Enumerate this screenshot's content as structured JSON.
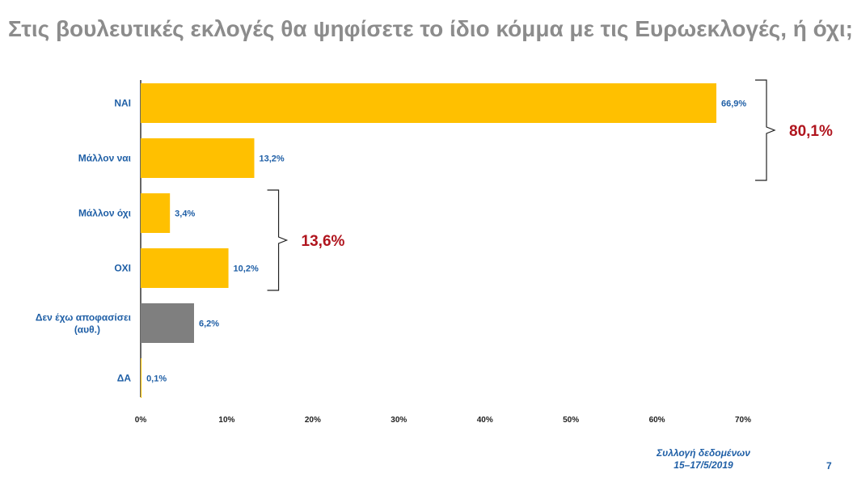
{
  "title": "Στις βουλευτικές εκλογές θα ψηφίσετε το ίδιο κόμμα με τις Ευρωεκλογές, ή όχι;",
  "chart_data": {
    "type": "bar",
    "orientation": "horizontal",
    "categories": [
      "ΝΑΙ",
      "Μάλλον ναι",
      "Μάλλον όχι",
      "ΟΧΙ",
      "Δεν έχω αποφασίσει (αυθ.)",
      "ΔΑ"
    ],
    "values": [
      66.9,
      13.2,
      3.4,
      10.2,
      6.2,
      0.1
    ],
    "value_labels": [
      "66,9%",
      "13,2%",
      "3,4%",
      "10,2%",
      "6,2%",
      "0,1%"
    ],
    "bar_colors": [
      "#ffc000",
      "#ffc000",
      "#ffc000",
      "#ffc000",
      "#7f7f7f",
      "#ffc000"
    ],
    "xlim": [
      0,
      70
    ],
    "x_ticks": [
      0,
      10,
      20,
      30,
      40,
      50,
      60,
      70
    ],
    "x_tick_labels": [
      "0%",
      "10%",
      "20%",
      "30%",
      "40%",
      "50%",
      "60%",
      "70%"
    ],
    "grid": false,
    "groups": [
      {
        "label": "80,1%",
        "from": 0,
        "to": 1
      },
      {
        "label": "13,6%",
        "from": 2,
        "to": 3
      }
    ]
  },
  "footer": {
    "source_line1": "Συλλογή δεδομένων",
    "source_line2": "15–17/5/2019",
    "page_number": "7"
  }
}
